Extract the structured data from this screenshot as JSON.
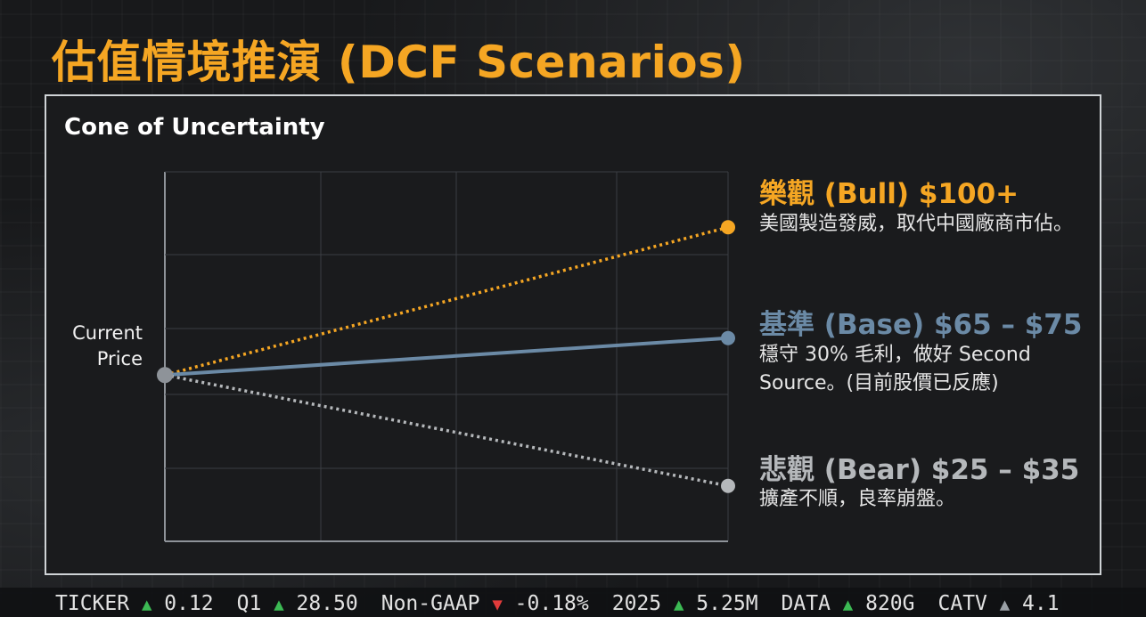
{
  "page": {
    "title": "估值情境推演 (DCF Scenarios)"
  },
  "chart_data": {
    "type": "line",
    "title": "Cone of Uncertainty",
    "start_label": "Current Price",
    "grid": true,
    "series": [
      {
        "name": "樂觀 (Bull) $100+",
        "description": "美國製造發威，取代中國廠商市佔。",
        "color": "#f5a623",
        "style": "dotted",
        "values": [
          60,
          100
        ]
      },
      {
        "name": "基準 (Base) $65 – $75",
        "description_line1": "穩守 30% 毛利，做好 Second",
        "description_line2": "Source。(目前股價已反應)",
        "color": "#6b8aa6",
        "style": "solid",
        "values": [
          60,
          70
        ]
      },
      {
        "name": "悲觀 (Bear) $25 – $35",
        "description": "擴產不順，良率崩盤。",
        "color": "#b5b8bb",
        "style": "dotted",
        "values": [
          60,
          30
        ]
      }
    ]
  },
  "ticker": [
    {
      "label": "TICKER",
      "dir": "up",
      "value": "0.12"
    },
    {
      "label": "Q1",
      "dir": "up",
      "value": "28.50"
    },
    {
      "label": "Non-GAAP",
      "dir": "down",
      "value": "-0.18%"
    },
    {
      "label": "2025",
      "dir": "up",
      "value": "5.25M"
    },
    {
      "label": "DATA",
      "dir": "up",
      "value": "820G"
    },
    {
      "label": "CATV",
      "dir": "neutral",
      "value": "4.1"
    }
  ]
}
